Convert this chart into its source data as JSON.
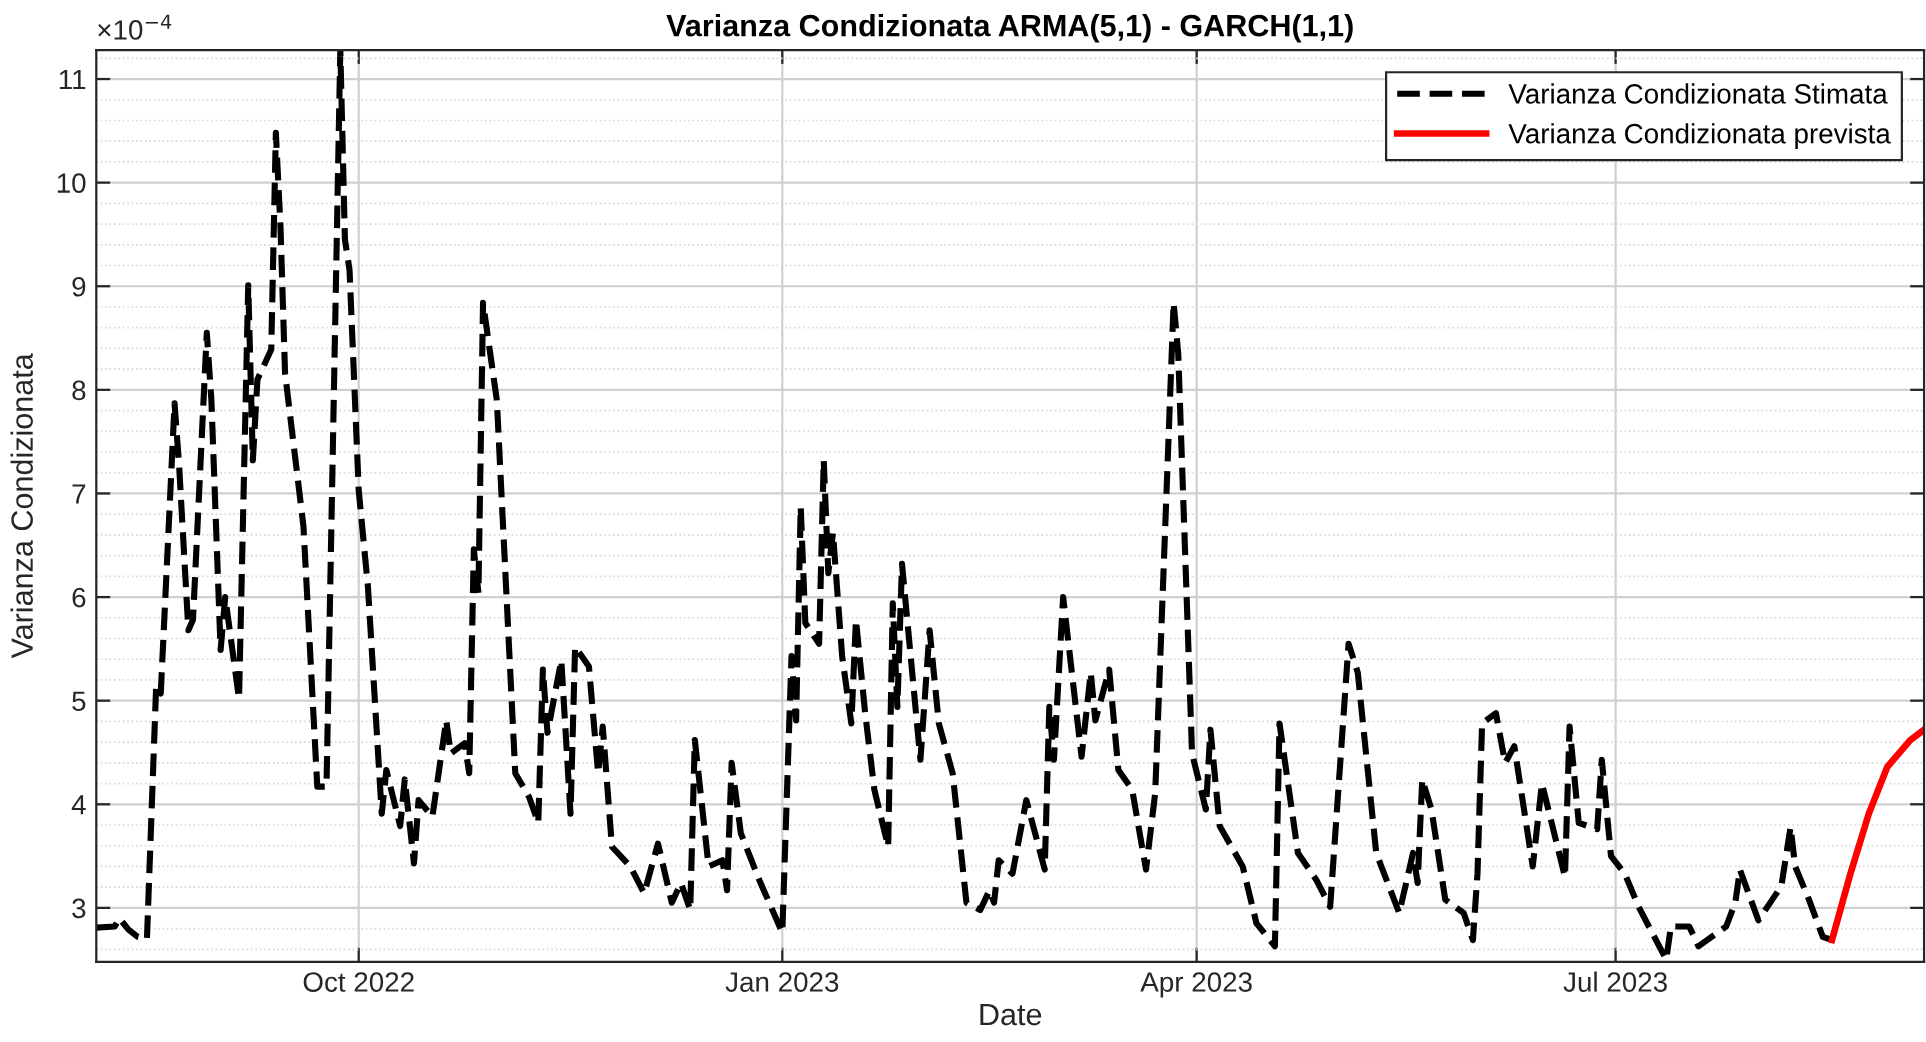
{
  "chart_data": {
    "type": "line",
    "title": "Varianza Condizionata ARMA(5,1) - GARCH(1,1)",
    "xlabel": "Date",
    "ylabel": "Varianza Condizionata",
    "annotations": [
      "×10$^{−4}$"
    ],
    "xlim": [
      "2022-08-05",
      "2023-09-06"
    ],
    "xticks": [
      {
        "value": "2022-10-01",
        "label": "Oct 2022"
      },
      {
        "value": "2023-01-01",
        "label": "Jan 2023"
      },
      {
        "value": "2023-04-01",
        "label": "Apr 2023"
      },
      {
        "value": "2023-07-01",
        "label": "Jul 2023"
      }
    ],
    "ylim": [
      2.48,
      11.28
    ],
    "yticks": [
      3,
      4,
      5,
      6,
      7,
      8,
      9,
      10,
      11
    ],
    "grid": true,
    "legend": "top right",
    "marker": "none",
    "series": [
      {
        "name": "Varianza Condizionata Stimata",
        "color": "#000000",
        "line_style": "dashed",
        "x": [
          "2022-08-05",
          "2022-08-09",
          "2022-08-10",
          "2022-08-12",
          "2022-08-14",
          "2022-08-16",
          "2022-08-18",
          "2022-08-19",
          "2022-08-22",
          "2022-08-23",
          "2022-08-25",
          "2022-08-26",
          "2022-08-29",
          "2022-08-30",
          "2022-09-01",
          "2022-09-02",
          "2022-09-05",
          "2022-09-07",
          "2022-09-08",
          "2022-09-09",
          "2022-09-12",
          "2022-09-13",
          "2022-09-14",
          "2022-09-15",
          "2022-09-19",
          "2022-09-22",
          "2022-09-24",
          "2022-09-27",
          "2022-09-28",
          "2022-09-29",
          "2022-10-01",
          "2022-10-03",
          "2022-10-06",
          "2022-10-07",
          "2022-10-10",
          "2022-10-11",
          "2022-10-13",
          "2022-10-14",
          "2022-10-17",
          "2022-10-20",
          "2022-10-21",
          "2022-10-24",
          "2022-10-25",
          "2022-10-26",
          "2022-10-27",
          "2022-10-28",
          "2022-10-31",
          "2022-11-04",
          "2022-11-07",
          "2022-11-09",
          "2022-11-10",
          "2022-11-11",
          "2022-11-14",
          "2022-11-16",
          "2022-11-17",
          "2022-11-20",
          "2022-11-22",
          "2022-11-23",
          "2022-11-25",
          "2022-11-29",
          "2022-12-02",
          "2022-12-05",
          "2022-12-08",
          "2022-12-10",
          "2022-12-12",
          "2022-12-13",
          "2022-12-16",
          "2022-12-19",
          "2022-12-20",
          "2022-12-21",
          "2022-12-23",
          "2022-12-27",
          "2023-01-01",
          "2023-01-03",
          "2023-01-04",
          "2023-01-05",
          "2023-01-06",
          "2023-01-09",
          "2023-01-10",
          "2023-01-11",
          "2023-01-12",
          "2023-01-14",
          "2023-01-16",
          "2023-01-17",
          "2023-01-19",
          "2023-01-21",
          "2023-01-24",
          "2023-01-25",
          "2023-01-26",
          "2023-01-27",
          "2023-01-31",
          "2023-02-02",
          "2023-02-04",
          "2023-02-07",
          "2023-02-10",
          "2023-02-13",
          "2023-02-15",
          "2023-02-16",
          "2023-02-17",
          "2023-02-20",
          "2023-02-23",
          "2023-02-27",
          "2023-02-28",
          "2023-03-01",
          "2023-03-03",
          "2023-03-07",
          "2023-03-09",
          "2023-03-10",
          "2023-03-13",
          "2023-03-15",
          "2023-03-18",
          "2023-03-21",
          "2023-03-23",
          "2023-03-27",
          "2023-03-28",
          "2023-03-31",
          "2023-04-03",
          "2023-04-04",
          "2023-04-06",
          "2023-04-11",
          "2023-04-14",
          "2023-04-18",
          "2023-04-19",
          "2023-04-23",
          "2023-04-27",
          "2023-04-30",
          "2023-05-04",
          "2023-05-06",
          "2023-05-10",
          "2023-05-15",
          "2023-05-18",
          "2023-05-19",
          "2023-05-20",
          "2023-05-22",
          "2023-05-25",
          "2023-05-29",
          "2023-05-31",
          "2023-06-01",
          "2023-06-02",
          "2023-06-05",
          "2023-06-07",
          "2023-06-09",
          "2023-06-13",
          "2023-06-15",
          "2023-06-20",
          "2023-06-21",
          "2023-06-23",
          "2023-06-27",
          "2023-06-28",
          "2023-06-30",
          "2023-07-03",
          "2023-07-06",
          "2023-07-12",
          "2023-07-13",
          "2023-07-17",
          "2023-07-19",
          "2023-07-25",
          "2023-07-27",
          "2023-07-28",
          "2023-08-01",
          "2023-08-06",
          "2023-08-08",
          "2023-08-09",
          "2023-08-12",
          "2023-08-15",
          "2023-08-17"
        ],
        "values": [
          2.81,
          2.82,
          2.9,
          2.79,
          2.72,
          2.7,
          5.14,
          5.07,
          7.87,
          7.26,
          5.68,
          5.78,
          8.55,
          7.9,
          5.49,
          6.0,
          5.02,
          9.01,
          7.32,
          8.1,
          8.39,
          10.48,
          9.58,
          8.16,
          6.68,
          4.17,
          4.17,
          11.28,
          9.45,
          9.16,
          7.03,
          6.1,
          3.91,
          4.33,
          3.79,
          4.24,
          3.43,
          4.04,
          3.88,
          4.81,
          4.49,
          4.59,
          4.3,
          6.46,
          6.04,
          8.84,
          7.9,
          4.3,
          4.07,
          3.82,
          5.3,
          4.69,
          5.39,
          3.91,
          5.52,
          5.33,
          4.3,
          4.75,
          3.59,
          3.4,
          3.14,
          3.62,
          3.05,
          3.24,
          2.98,
          4.62,
          3.4,
          3.46,
          3.17,
          4.4,
          3.72,
          3.27,
          2.76,
          5.43,
          4.81,
          6.87,
          5.75,
          5.55,
          7.32,
          6.23,
          6.62,
          5.43,
          4.78,
          5.78,
          4.88,
          4.14,
          3.59,
          5.94,
          4.94,
          6.32,
          4.43,
          5.68,
          4.78,
          4.3,
          3.05,
          2.98,
          3.17,
          3.05,
          3.46,
          3.33,
          4.04,
          3.37,
          4.94,
          4.43,
          6.0,
          4.46,
          5.27,
          4.81,
          5.3,
          4.33,
          4.14,
          3.37,
          4.11,
          8.84,
          8.35,
          4.49,
          3.95,
          4.72,
          3.79,
          3.4,
          2.85,
          2.63,
          4.78,
          3.53,
          3.27,
          3.01,
          5.55,
          5.27,
          3.53,
          2.95,
          3.53,
          3.24,
          4.24,
          3.95,
          3.08,
          2.95,
          2.69,
          3.33,
          4.78,
          4.88,
          4.4,
          4.56,
          3.4,
          4.2,
          3.3,
          4.75,
          3.82,
          3.76,
          4.43,
          3.5,
          3.33,
          3.01,
          2.5,
          2.82,
          2.82,
          2.63,
          2.82,
          3.05,
          3.37,
          2.88,
          3.21,
          3.78,
          3.4,
          3.08,
          2.72,
          2.69
        ]
      },
      {
        "name": "Varianza Condizionata prevista",
        "color": "#ff0000",
        "line_style": "solid",
        "x": [
          "2023-08-17",
          "2023-08-21",
          "2023-08-25",
          "2023-08-29",
          "2023-09-03",
          "2023-09-06"
        ],
        "values": [
          2.69,
          3.33,
          3.91,
          4.36,
          4.62,
          4.72
        ]
      }
    ]
  }
}
